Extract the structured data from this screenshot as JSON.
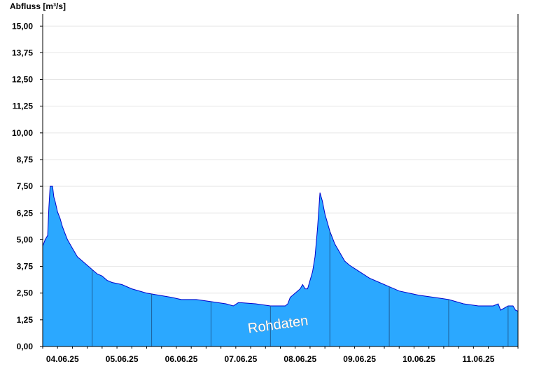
{
  "chart_data": {
    "type": "area",
    "ylabel": "Abfluss [m³/s]",
    "watermark": "Rohdaten",
    "ylim": [
      0,
      15.5
    ],
    "yticks": [
      0,
      1.25,
      2.5,
      3.75,
      5,
      6.25,
      7.5,
      8.75,
      10,
      11.25,
      12.5,
      13.75,
      15
    ],
    "ytick_labels": [
      "0,00",
      "1,25",
      "2,50",
      "3,75",
      "5,00",
      "6,25",
      "7,50",
      "8,75",
      "10,00",
      "11,25",
      "12,50",
      "13,75",
      "15,00"
    ],
    "xlim": [
      "2025-06-03T16:00",
      "2025-06-11T16:00"
    ],
    "xticks": [
      "2025-06-04T00:00",
      "2025-06-05T00:00",
      "2025-06-06T00:00",
      "2025-06-07T00:00",
      "2025-06-08T00:00",
      "2025-06-09T00:00",
      "2025-06-10T00:00",
      "2025-06-11T00:00"
    ],
    "xtick_labels": [
      "04.06.25",
      "05.06.25",
      "06.06.25",
      "07.06.25",
      "08.06.25",
      "09.06.25",
      "10.06.25",
      "11.06.25"
    ],
    "grid": true,
    "fill_color": "#2ba8ff",
    "line_color": "#0000cc",
    "series": [
      {
        "x": [
          "2025-06-03T16:00",
          "2025-06-03T17:00",
          "2025-06-03T18:00",
          "2025-06-03T18:30",
          "2025-06-03T19:00",
          "2025-06-03T20:00",
          "2025-06-03T20:30",
          "2025-06-03T21:00",
          "2025-06-03T22:00",
          "2025-06-03T23:00",
          "2025-06-04T00:00",
          "2025-06-04T01:00",
          "2025-06-04T02:00",
          "2025-06-04T03:00",
          "2025-06-04T04:00",
          "2025-06-04T05:00",
          "2025-06-04T06:00",
          "2025-06-04T08:00",
          "2025-06-04T10:00",
          "2025-06-04T12:00",
          "2025-06-04T14:00",
          "2025-06-04T16:00",
          "2025-06-04T18:00",
          "2025-06-04T20:00",
          "2025-06-05T00:00",
          "2025-06-05T04:00",
          "2025-06-05T10:00",
          "2025-06-05T15:00",
          "2025-06-05T20:00",
          "2025-06-06T00:00",
          "2025-06-06T06:00",
          "2025-06-06T12:00",
          "2025-06-06T18:00",
          "2025-06-06T21:00",
          "2025-06-06T23:00",
          "2025-06-07T00:00",
          "2025-06-07T06:00",
          "2025-06-07T12:00",
          "2025-06-07T18:00",
          "2025-06-07T19:00",
          "2025-06-07T20:00",
          "2025-06-07T22:00",
          "2025-06-08T00:00",
          "2025-06-08T01:00",
          "2025-06-08T02:00",
          "2025-06-08T03:00",
          "2025-06-08T05:00",
          "2025-06-08T06:00",
          "2025-06-08T07:00",
          "2025-06-08T08:00",
          "2025-06-08T09:00",
          "2025-06-08T10:00",
          "2025-06-08T11:00",
          "2025-06-08T12:00",
          "2025-06-08T14:00",
          "2025-06-08T16:00",
          "2025-06-08T18:00",
          "2025-06-08T20:00",
          "2025-06-09T00:00",
          "2025-06-09T04:00",
          "2025-06-09T08:00",
          "2025-06-09T12:00",
          "2025-06-09T16:00",
          "2025-06-09T20:00",
          "2025-06-10T00:00",
          "2025-06-10T06:00",
          "2025-06-10T12:00",
          "2025-06-10T18:00",
          "2025-06-11T00:00",
          "2025-06-11T06:00",
          "2025-06-11T08:00",
          "2025-06-11T09:00",
          "2025-06-11T12:00",
          "2025-06-11T14:00",
          "2025-06-11T15:00",
          "2025-06-11T16:00"
        ],
        "values": [
          4.7,
          5.0,
          5.2,
          6.5,
          7.5,
          7.5,
          7.0,
          6.8,
          6.3,
          6.0,
          5.6,
          5.3,
          5.0,
          4.8,
          4.6,
          4.4,
          4.2,
          4.0,
          3.8,
          3.6,
          3.4,
          3.3,
          3.1,
          3.0,
          2.9,
          2.7,
          2.5,
          2.4,
          2.3,
          2.2,
          2.2,
          2.1,
          2.0,
          1.9,
          2.05,
          2.05,
          2.0,
          1.9,
          1.9,
          2.0,
          2.3,
          2.5,
          2.7,
          2.9,
          2.7,
          2.7,
          3.5,
          4.2,
          5.5,
          7.2,
          6.8,
          6.2,
          5.8,
          5.4,
          4.8,
          4.4,
          4.0,
          3.8,
          3.5,
          3.2,
          3.0,
          2.8,
          2.6,
          2.5,
          2.4,
          2.3,
          2.2,
          2.0,
          1.9,
          1.9,
          2.0,
          1.7,
          1.9,
          1.9,
          1.7,
          1.65
        ]
      }
    ]
  }
}
